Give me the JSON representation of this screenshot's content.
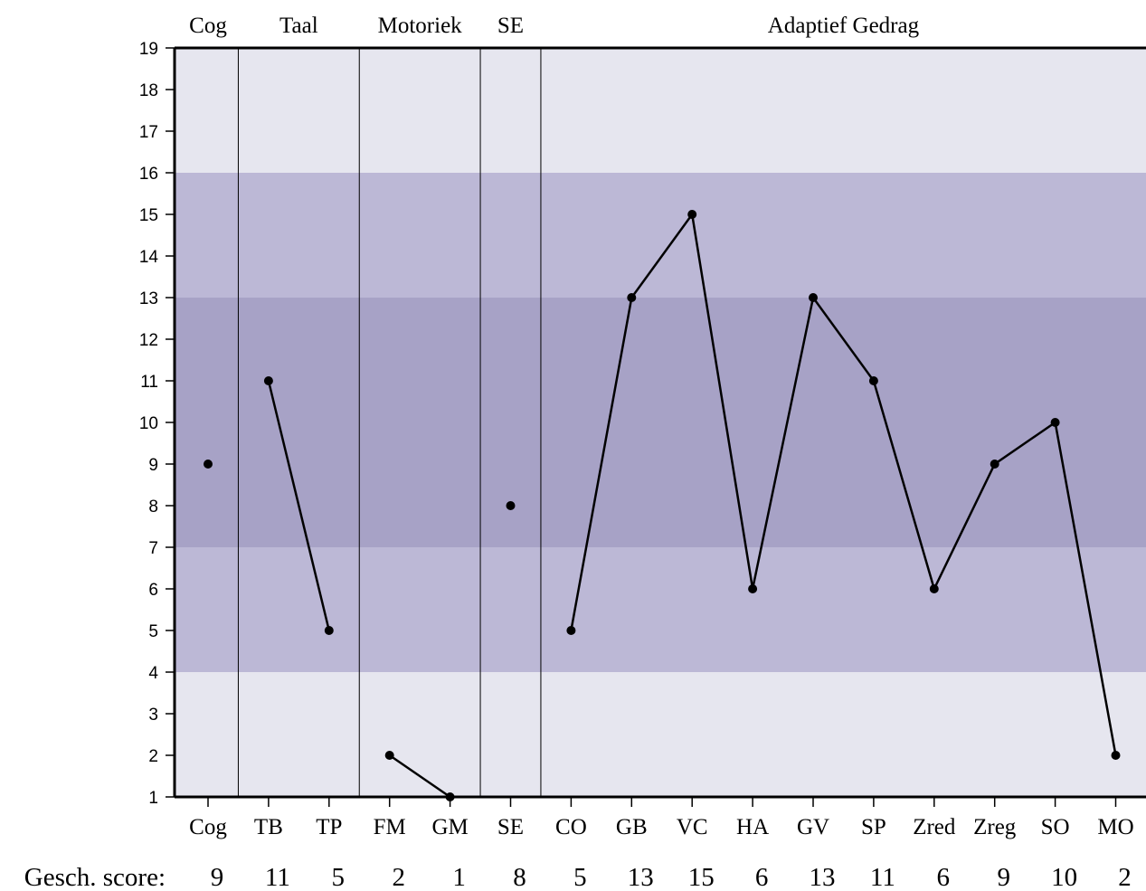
{
  "chart_data": {
    "type": "line",
    "domain_headers": [
      "Cog",
      "Taal",
      "Motoriek",
      "SE",
      "Adaptief Gedrag"
    ],
    "domain_groups": [
      {
        "name": "Cog",
        "subtests": [
          "Cog"
        ]
      },
      {
        "name": "Taal",
        "subtests": [
          "TB",
          "TP"
        ]
      },
      {
        "name": "Motoriek",
        "subtests": [
          "FM",
          "GM"
        ]
      },
      {
        "name": "SE",
        "subtests": [
          "SE"
        ]
      },
      {
        "name": "Adaptief Gedrag",
        "subtests": [
          "CO",
          "GB",
          "VC",
          "HA",
          "GV",
          "SP",
          "Zred",
          "Zreg",
          "SO",
          "MO"
        ]
      }
    ],
    "categories": [
      "Cog",
      "TB",
      "TP",
      "FM",
      "GM",
      "SE",
      "CO",
      "GB",
      "VC",
      "HA",
      "GV",
      "SP",
      "Zred",
      "Zreg",
      "SO",
      "MO"
    ],
    "values": [
      9,
      11,
      5,
      2,
      1,
      8,
      5,
      13,
      15,
      6,
      13,
      11,
      6,
      9,
      10,
      2
    ],
    "score_row_label": "Gesch. score:",
    "score_row": [
      "9",
      "11",
      "5",
      "2",
      "1",
      "8",
      "5",
      "13",
      "15",
      "6",
      "13",
      "11",
      "6",
      "9",
      "10",
      "2"
    ],
    "y_ticks": [
      "1",
      "2",
      "3",
      "4",
      "5",
      "6",
      "7",
      "8",
      "9",
      "10",
      "11",
      "12",
      "13",
      "14",
      "15",
      "16",
      "17",
      "18",
      "19"
    ],
    "ylim": [
      1,
      19
    ],
    "bands": [
      {
        "from": 1,
        "to": 4,
        "color": "#e6e6ef"
      },
      {
        "from": 4,
        "to": 7,
        "color": "#bcb8d6"
      },
      {
        "from": 7,
        "to": 13,
        "color": "#a7a2c6"
      },
      {
        "from": 13,
        "to": 16,
        "color": "#bcb8d6"
      },
      {
        "from": 16,
        "to": 19,
        "color": "#e6e6ef"
      }
    ],
    "line_color": "#000000",
    "grid": false
  }
}
